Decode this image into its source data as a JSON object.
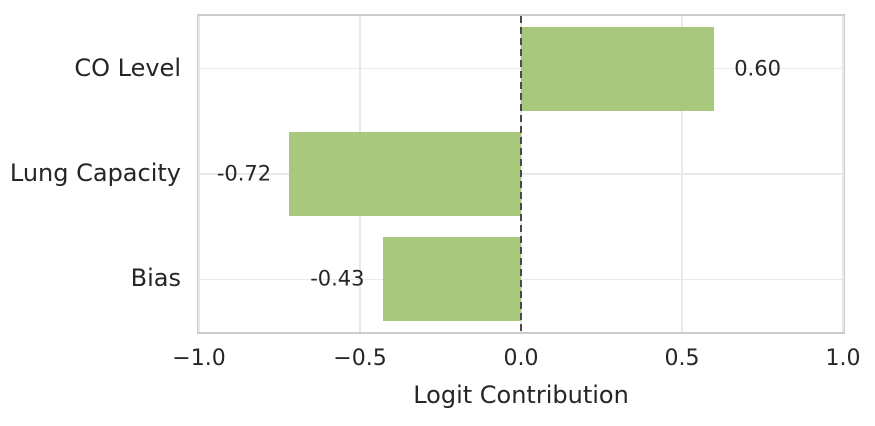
{
  "figure": {
    "background": "#ffffff"
  },
  "chart_data": {
    "type": "bar",
    "orientation": "horizontal",
    "title": "",
    "xlabel": "Logit Contribution",
    "ylabel": "",
    "categories": [
      "CO Level",
      "Lung Capacity",
      "Bias"
    ],
    "values": [
      0.6,
      -0.72,
      -0.43
    ],
    "value_labels": [
      "0.60",
      "-0.72",
      "-0.43"
    ],
    "xlim": [
      -1.0,
      1.0
    ],
    "x_ticks": [
      -1.0,
      -0.5,
      0.0,
      0.5,
      1.0
    ],
    "x_tick_labels": [
      "−1.0",
      "−0.5",
      "0.0",
      "0.5",
      "1.0"
    ],
    "grid": true,
    "legend": null,
    "bar_color": "#a8c87d",
    "grid_color": "#e9e9e9",
    "border_color": "#cccccc",
    "text_color": "#262626",
    "zero_line": {
      "x": 0.0,
      "style": "dashed",
      "color": "#4a4a4a"
    }
  }
}
